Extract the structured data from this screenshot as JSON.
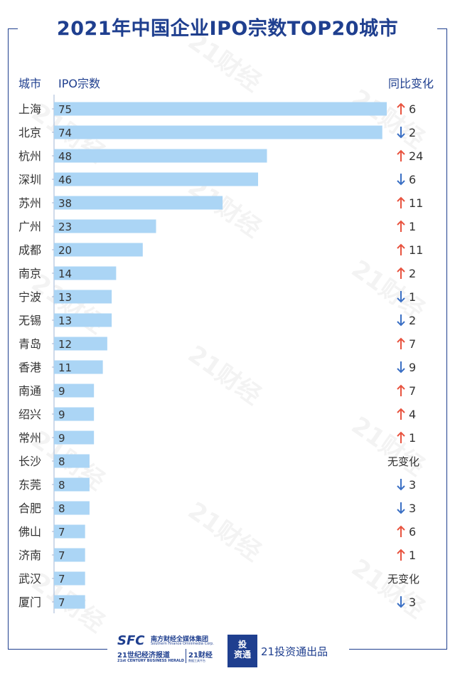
{
  "title": "2021年中国企业IPO宗数TOP20城市",
  "headers": {
    "city": "城市",
    "ipo": "IPO宗数",
    "change": "同比变化"
  },
  "colors": {
    "bar": "#abd5f5",
    "up": "#e8533f",
    "down": "#3a6fc4",
    "title": "#1f3f8f",
    "text": "#333333",
    "axis": "#9fb4d4"
  },
  "watermark": "21财经",
  "chart_data": {
    "type": "bar",
    "orientation": "horizontal",
    "categories": [
      "上海",
      "北京",
      "杭州",
      "深圳",
      "苏州",
      "广州",
      "成都",
      "南京",
      "宁波",
      "无锡",
      "青岛",
      "香港",
      "南通",
      "绍兴",
      "常州",
      "长沙",
      "东莞",
      "合肥",
      "佛山",
      "济南",
      "武汉",
      "厦门"
    ],
    "values": [
      75,
      74,
      48,
      46,
      38,
      23,
      20,
      14,
      13,
      13,
      12,
      11,
      9,
      9,
      9,
      8,
      8,
      8,
      7,
      7,
      7,
      7
    ],
    "changes": [
      {
        "dir": "up",
        "text": "6"
      },
      {
        "dir": "down",
        "text": "2"
      },
      {
        "dir": "up",
        "text": "24"
      },
      {
        "dir": "down",
        "text": "6"
      },
      {
        "dir": "up",
        "text": "11"
      },
      {
        "dir": "up",
        "text": "1"
      },
      {
        "dir": "up",
        "text": "11"
      },
      {
        "dir": "up",
        "text": "2"
      },
      {
        "dir": "down",
        "text": "1"
      },
      {
        "dir": "down",
        "text": "2"
      },
      {
        "dir": "up",
        "text": "7"
      },
      {
        "dir": "down",
        "text": "9"
      },
      {
        "dir": "up",
        "text": "7"
      },
      {
        "dir": "up",
        "text": "4"
      },
      {
        "dir": "up",
        "text": "1"
      },
      {
        "dir": "none",
        "text": "无变化"
      },
      {
        "dir": "down",
        "text": "3"
      },
      {
        "dir": "down",
        "text": "3"
      },
      {
        "dir": "up",
        "text": "6"
      },
      {
        "dir": "up",
        "text": "1"
      },
      {
        "dir": "none",
        "text": "无变化"
      },
      {
        "dir": "down",
        "text": "3"
      }
    ],
    "xlim": [
      0,
      75
    ]
  },
  "footer": {
    "sfc": "SFC",
    "sfc_cn": "南方财经全媒体集团",
    "sfc_en": "Southern Finance Omnimedia Corp.",
    "herald_cn": "21世纪经济报道",
    "herald_en": "21st CENTURY BUSINESS HERALD",
    "cj21": "21财经",
    "cj21_sub": "数据工具平台",
    "badge_top": "投",
    "badge_bottom": "资通",
    "producer": "21投资通出品"
  }
}
